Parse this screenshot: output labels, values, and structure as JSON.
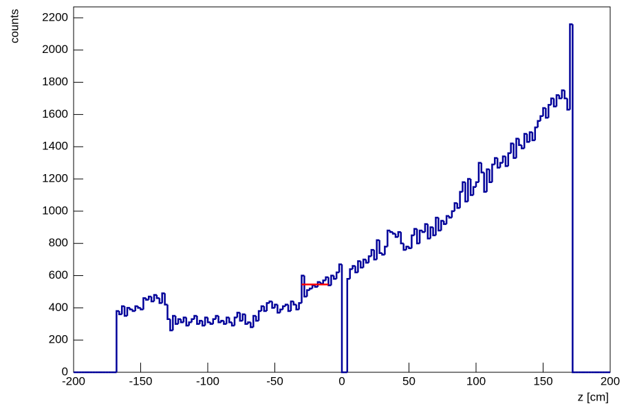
{
  "chart_data": {
    "type": "histogram",
    "x_label": "z [cm]",
    "y_label": "counts",
    "color": "#000099",
    "bins": [
      -200,
      -198,
      -196,
      -194,
      -192,
      -190,
      -188,
      -186,
      -184,
      -182,
      -180,
      -178,
      -176,
      -174,
      -172,
      -170,
      -168,
      -166,
      -164,
      -162,
      -160,
      -158,
      -156,
      -154,
      -152,
      -150,
      -148,
      -146,
      -144,
      -142,
      -140,
      -138,
      -136,
      -134,
      -132,
      -130,
      -128,
      -126,
      -124,
      -122,
      -120,
      -118,
      -116,
      -114,
      -112,
      -110,
      -108,
      -106,
      -104,
      -102,
      -100,
      -98,
      -96,
      -94,
      -92,
      -90,
      -88,
      -86,
      -84,
      -82,
      -80,
      -78,
      -76,
      -74,
      -72,
      -70,
      -68,
      -66,
      -64,
      -62,
      -60,
      -58,
      -56,
      -54,
      -52,
      -50,
      -48,
      -46,
      -44,
      -42,
      -40,
      -38,
      -36,
      -34,
      -32,
      -30,
      -28,
      -26,
      -24,
      -22,
      -20,
      -18,
      -16,
      -14,
      -12,
      -10,
      -8,
      -6,
      -4,
      -2,
      0,
      2,
      4,
      6,
      8,
      10,
      12,
      14,
      16,
      18,
      20,
      22,
      24,
      26,
      28,
      30,
      32,
      34,
      36,
      38,
      40,
      42,
      44,
      46,
      48,
      50,
      52,
      54,
      56,
      58,
      60,
      62,
      64,
      66,
      68,
      70,
      72,
      74,
      76,
      78,
      80,
      82,
      84,
      86,
      88,
      90,
      92,
      94,
      96,
      98,
      100,
      102,
      104,
      106,
      108,
      110,
      112,
      114,
      116,
      118,
      120,
      122,
      124,
      126,
      128,
      130,
      132,
      134,
      136,
      138,
      140,
      142,
      144,
      146,
      148,
      150,
      152,
      154,
      156,
      158,
      160,
      162,
      164,
      166,
      168,
      170,
      172,
      174,
      176,
      178,
      180,
      182,
      184,
      186,
      188,
      190,
      192,
      194,
      196,
      198,
      200
    ],
    "values": [
      0,
      0,
      0,
      0,
      0,
      0,
      0,
      0,
      0,
      0,
      0,
      0,
      0,
      0,
      0,
      0,
      380,
      360,
      410,
      350,
      400,
      390,
      380,
      410,
      400,
      390,
      460,
      450,
      470,
      440,
      480,
      460,
      430,
      490,
      420,
      330,
      260,
      350,
      300,
      330,
      310,
      340,
      290,
      310,
      330,
      350,
      300,
      320,
      290,
      340,
      310,
      300,
      330,
      350,
      310,
      320,
      300,
      340,
      310,
      290,
      340,
      370,
      320,
      360,
      300,
      310,
      280,
      350,
      320,
      380,
      410,
      380,
      430,
      440,
      400,
      420,
      370,
      390,
      410,
      420,
      380,
      440,
      420,
      390,
      430,
      600,
      470,
      510,
      520,
      540,
      530,
      560,
      550,
      570,
      590,
      540,
      600,
      580,
      620,
      670,
      0,
      0,
      580,
      640,
      660,
      620,
      690,
      650,
      700,
      680,
      720,
      760,
      700,
      820,
      740,
      730,
      780,
      880,
      870,
      860,
      840,
      870,
      800,
      760,
      780,
      770,
      850,
      890,
      800,
      880,
      870,
      920,
      830,
      900,
      850,
      960,
      880,
      940,
      920,
      970,
      960,
      1000,
      1050,
      1020,
      1120,
      1180,
      1060,
      1200,
      1100,
      1150,
      1180,
      1300,
      1240,
      1120,
      1260,
      1180,
      1290,
      1330,
      1270,
      1300,
      1340,
      1280,
      1360,
      1420,
      1330,
      1450,
      1410,
      1390,
      1480,
      1430,
      1490,
      1440,
      1520,
      1560,
      1590,
      1640,
      1580,
      1660,
      1700,
      1650,
      1720,
      1700,
      1750,
      1700,
      1630,
      2160,
      0,
      0,
      0,
      0,
      0,
      0,
      0,
      0,
      0,
      0,
      0,
      0,
      0,
      0
    ],
    "segment": {
      "x": [
        -30,
        -10
      ],
      "y": 545,
      "color": "#ff0000"
    },
    "xlim": [
      -200,
      200
    ],
    "xticks": [
      -200,
      -150,
      -100,
      -50,
      0,
      50,
      100,
      150,
      200
    ],
    "ylim": [
      0,
      2268
    ],
    "yticks": [
      0,
      200,
      400,
      600,
      800,
      1000,
      1200,
      1400,
      1600,
      1800,
      2000,
      2200
    ]
  }
}
